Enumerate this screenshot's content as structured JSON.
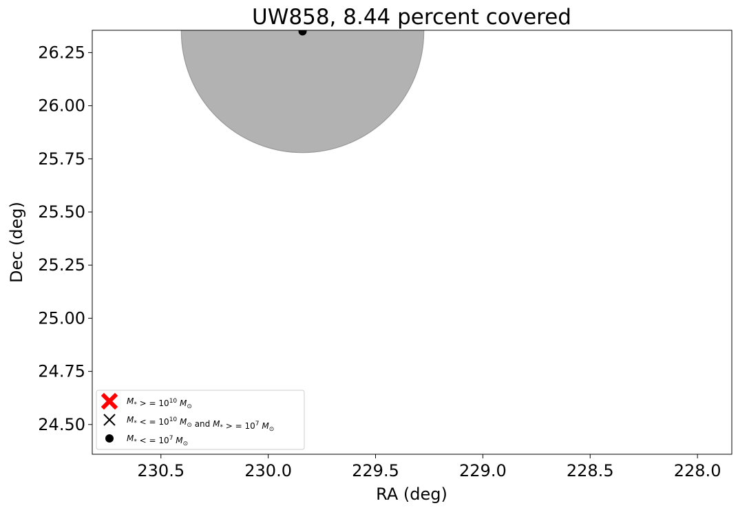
{
  "chart_data": {
    "type": "scatter",
    "title": "UW858, 8.44 percent covered",
    "xlabel": "RA (deg)",
    "ylabel": "Dec (deg)",
    "xlim": [
      230.82,
      227.84
    ],
    "ylim": [
      24.36,
      26.355
    ],
    "x_inverted": true,
    "x_ticks": [
      230.5,
      230.0,
      229.5,
      229.0,
      228.5,
      228.0
    ],
    "x_tick_labels": [
      "230.5",
      "230.0",
      "229.5",
      "229.0",
      "228.5",
      "228.0"
    ],
    "y_ticks": [
      24.5,
      24.75,
      25.0,
      25.25,
      25.5,
      25.75,
      26.0,
      26.25
    ],
    "y_tick_labels": [
      "24.50",
      "24.75",
      "25.00",
      "25.25",
      "25.50",
      "25.75",
      "26.00",
      "26.25"
    ],
    "grid": false,
    "coverage_region": {
      "shape": "circle",
      "center": [
        229.84,
        26.35
      ],
      "radius_deg": 0.565,
      "color": "#b2b2b2",
      "edge_color": "#999999"
    },
    "series": [
      {
        "marker": "filled-x",
        "color": "#ff0000",
        "points": []
      },
      {
        "marker": "x",
        "color": "#000000",
        "points": []
      },
      {
        "marker": "circle",
        "color": "#000000",
        "points": [
          [
            229.84,
            26.35
          ]
        ]
      }
    ],
    "legend": {
      "placement": "lower-left",
      "entries": [
        {
          "marker": "filled-x",
          "color": "#ff0000",
          "label_parts": [
            "M",
            "*",
            " > = 10",
            "10",
            "M",
            "⊙"
          ]
        },
        {
          "marker": "x",
          "color": "#000000",
          "label_parts": [
            "M",
            "*",
            " < = 10",
            "10",
            "M",
            "⊙",
            " and ",
            "M",
            "*",
            " > = 10",
            "7",
            "M",
            "⊙"
          ]
        },
        {
          "marker": "circle",
          "color": "#000000",
          "label_parts": [
            "M",
            "*",
            " < = 10",
            "7",
            "M",
            "⊙"
          ]
        }
      ]
    }
  }
}
